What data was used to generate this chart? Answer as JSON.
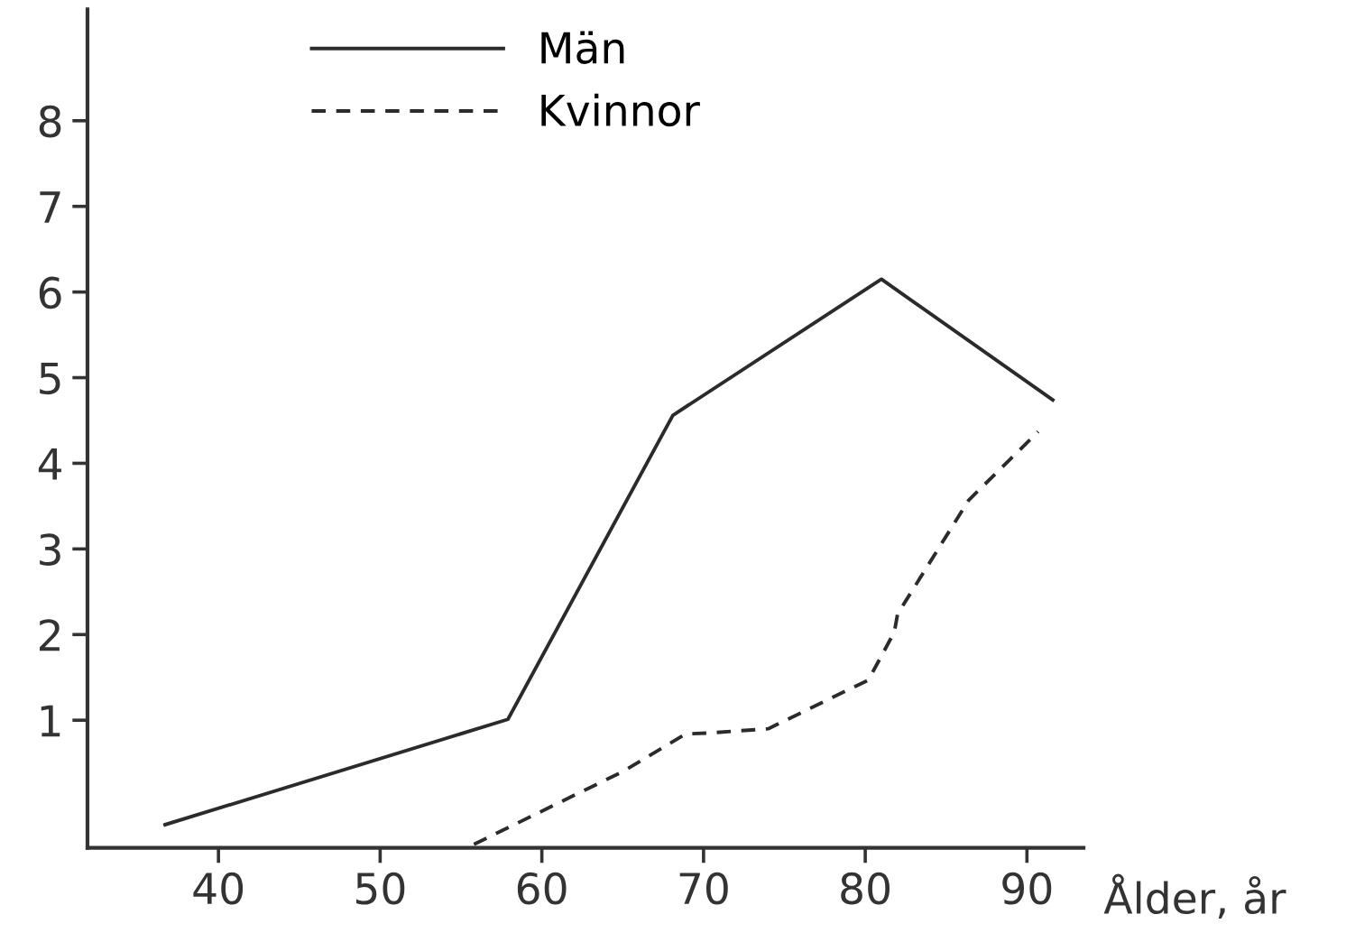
{
  "chart_data": {
    "type": "line",
    "xlabel": "Ålder, år",
    "series": [
      {
        "name": "Män",
        "color": "#2b2b2b",
        "line_style": "solid",
        "x": [
          36.7,
          57.9,
          68.1,
          81.0,
          91.6
        ],
        "values": [
          -0.22,
          1.01,
          4.56,
          6.15,
          4.74
        ]
      },
      {
        "name": "Kvinnor",
        "color": "#2b2b2b",
        "line_style": "dashed",
        "x": [
          55.8,
          65.0,
          68.9,
          70.3,
          74.0,
          80.2,
          81.8,
          82.0,
          86.4,
          90.7
        ],
        "values": [
          -0.45,
          0.4,
          0.84,
          0.85,
          0.9,
          1.47,
          2.03,
          2.24,
          3.57,
          4.37
        ]
      }
    ],
    "xlim": [
      31.9,
      93.5
    ],
    "ylim": [
      -0.49,
      9.3
    ],
    "xticks": [
      40,
      50,
      60,
      70,
      80,
      90
    ],
    "yticks": [
      1,
      2,
      3,
      4,
      5,
      6,
      7,
      8
    ],
    "grid": false,
    "legend": "top",
    "marker": "none"
  }
}
